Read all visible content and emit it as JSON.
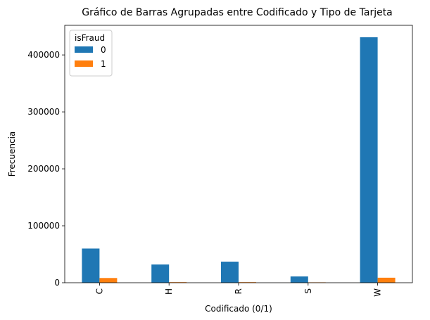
{
  "chart_data": {
    "type": "bar",
    "title": "Gráfico de Barras Agrupadas entre Codificado y Tipo de Tarjeta",
    "xlabel": "Codificado (0/1)",
    "ylabel": "Frecuencia",
    "categories": [
      "C",
      "H",
      "R",
      "S",
      "W"
    ],
    "series": [
      {
        "name": "0",
        "color": "#1f77b4",
        "values": [
          60000,
          32000,
          37000,
          11000,
          431000
        ]
      },
      {
        "name": "1",
        "color": "#ff7f0e",
        "values": [
          8300,
          1000,
          1000,
          700,
          8800
        ]
      }
    ],
    "ylim": [
      0,
      452000
    ],
    "yticks": [
      0,
      100000,
      200000,
      300000,
      400000
    ],
    "ytick_labels": [
      "0",
      "100000",
      "200000",
      "300000",
      "400000"
    ],
    "legend": {
      "title": "isFraud",
      "placement": "top-left"
    },
    "grid": false
  }
}
